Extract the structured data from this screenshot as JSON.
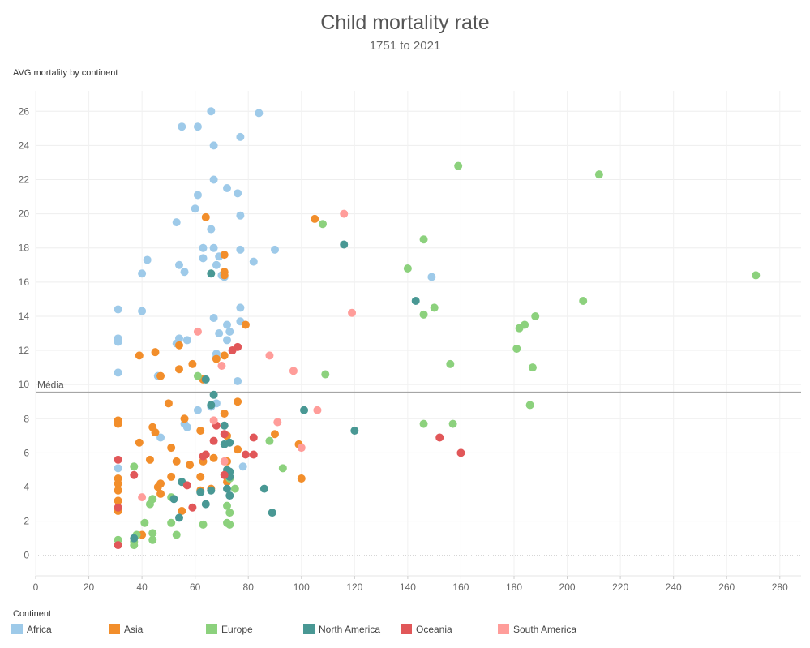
{
  "chart_data": {
    "type": "scatter",
    "title": "Child mortality rate",
    "subtitle": "1751 to 2021",
    "ylabel": "AVG mortality by continent",
    "xlabel": "",
    "xlim": [
      0,
      288
    ],
    "ylim": [
      -1.2,
      27.2
    ],
    "xticks": [
      0,
      20,
      40,
      60,
      80,
      100,
      120,
      140,
      160,
      180,
      200,
      220,
      240,
      260,
      280
    ],
    "yticks": [
      0,
      2,
      4,
      6,
      8,
      10,
      12,
      14,
      16,
      18,
      20,
      22,
      24,
      26
    ],
    "grid": true,
    "reference_line": {
      "label": "Média",
      "value": 9.55
    },
    "legend_title": "Continent",
    "legend_position": "bottom",
    "series": [
      {
        "name": "Africa",
        "color": "#9ecae9",
        "points": [
          [
            66,
            26
          ],
          [
            84,
            25.9
          ],
          [
            55,
            25.1
          ],
          [
            61,
            25.1
          ],
          [
            67,
            24
          ],
          [
            77,
            24.5
          ],
          [
            67,
            22
          ],
          [
            72,
            21.5
          ],
          [
            61,
            21.1
          ],
          [
            76,
            21.2
          ],
          [
            53,
            19.5
          ],
          [
            60,
            20.3
          ],
          [
            77,
            19.9
          ],
          [
            66,
            19.1
          ],
          [
            63,
            18
          ],
          [
            67,
            18
          ],
          [
            77,
            17.9
          ],
          [
            90,
            17.9
          ],
          [
            42,
            17.3
          ],
          [
            63,
            17.4
          ],
          [
            69,
            17.5
          ],
          [
            82,
            17.2
          ],
          [
            54,
            17
          ],
          [
            68,
            17
          ],
          [
            40,
            16.5
          ],
          [
            56,
            16.6
          ],
          [
            70,
            16.4
          ],
          [
            71,
            16.3
          ],
          [
            149,
            16.3
          ],
          [
            31,
            14.4
          ],
          [
            40,
            14.3
          ],
          [
            67,
            13.9
          ],
          [
            77,
            14.5
          ],
          [
            77,
            13.7
          ],
          [
            72,
            13.5
          ],
          [
            73,
            13.1
          ],
          [
            69,
            13
          ],
          [
            31,
            12.7
          ],
          [
            31,
            12.5
          ],
          [
            54,
            12.7
          ],
          [
            57,
            12.6
          ],
          [
            53,
            12.4
          ],
          [
            72,
            12.6
          ],
          [
            68,
            11.8
          ],
          [
            68,
            11.6
          ],
          [
            31,
            10.7
          ],
          [
            46,
            10.5
          ],
          [
            76,
            10.2
          ],
          [
            61,
            8.5
          ],
          [
            66,
            8.7
          ],
          [
            68,
            8.9
          ],
          [
            56,
            7.7
          ],
          [
            57,
            7.5
          ],
          [
            47,
            6.9
          ],
          [
            31,
            5.1
          ],
          [
            78,
            5.2
          ]
        ]
      },
      {
        "name": "Asia",
        "color": "#f28e2b",
        "points": [
          [
            64,
            19.8
          ],
          [
            105,
            19.7
          ],
          [
            71,
            17.6
          ],
          [
            71,
            16.6
          ],
          [
            71,
            16.4
          ],
          [
            79,
            13.5
          ],
          [
            54,
            12.3
          ],
          [
            39,
            11.7
          ],
          [
            45,
            11.9
          ],
          [
            59,
            11.2
          ],
          [
            68,
            11.5
          ],
          [
            71,
            11.7
          ],
          [
            47,
            10.5
          ],
          [
            54,
            10.9
          ],
          [
            63,
            10.3
          ],
          [
            76,
            9.0
          ],
          [
            50,
            8.9
          ],
          [
            56,
            8.0
          ],
          [
            71,
            8.3
          ],
          [
            31,
            7.9
          ],
          [
            31,
            7.7
          ],
          [
            44,
            7.5
          ],
          [
            45,
            7.2
          ],
          [
            62,
            7.3
          ],
          [
            72,
            7.0
          ],
          [
            90,
            7.1
          ],
          [
            99,
            6.5
          ],
          [
            39,
            6.6
          ],
          [
            51,
            6.3
          ],
          [
            76,
            6.2
          ],
          [
            43,
            5.6
          ],
          [
            53,
            5.5
          ],
          [
            58,
            5.3
          ],
          [
            63,
            5.5
          ],
          [
            67,
            5.7
          ],
          [
            72,
            5.5
          ],
          [
            31,
            4.5
          ],
          [
            31,
            4.2
          ],
          [
            46,
            4.0
          ],
          [
            47,
            4.2
          ],
          [
            51,
            4.6
          ],
          [
            62,
            4.6
          ],
          [
            72,
            4.3
          ],
          [
            100,
            4.5
          ],
          [
            31,
            3.8
          ],
          [
            47,
            3.6
          ],
          [
            62,
            3.8
          ],
          [
            66,
            3.9
          ],
          [
            31,
            3.2
          ],
          [
            31,
            2.6
          ],
          [
            55,
            2.6
          ],
          [
            40,
            1.2
          ]
        ]
      },
      {
        "name": "Europe",
        "color": "#8cd17d",
        "points": [
          [
            159,
            22.8
          ],
          [
            212,
            22.3
          ],
          [
            108,
            19.4
          ],
          [
            146,
            18.5
          ],
          [
            140,
            16.8
          ],
          [
            271,
            16.4
          ],
          [
            206,
            14.9
          ],
          [
            150,
            14.5
          ],
          [
            146,
            14.1
          ],
          [
            188,
            14.0
          ],
          [
            182,
            13.3
          ],
          [
            184,
            13.5
          ],
          [
            181,
            12.1
          ],
          [
            156,
            11.2
          ],
          [
            187,
            11.0
          ],
          [
            109,
            10.6
          ],
          [
            61,
            10.5
          ],
          [
            186,
            8.8
          ],
          [
            146,
            7.7
          ],
          [
            157,
            7.7
          ],
          [
            88,
            6.7
          ],
          [
            93,
            5.1
          ],
          [
            37,
            5.2
          ],
          [
            73,
            4.5
          ],
          [
            75,
            3.9
          ],
          [
            44,
            3.3
          ],
          [
            51,
            3.4
          ],
          [
            43,
            3.0
          ],
          [
            72,
            2.9
          ],
          [
            73,
            2.5
          ],
          [
            41,
            1.9
          ],
          [
            51,
            1.9
          ],
          [
            63,
            1.8
          ],
          [
            72,
            1.9
          ],
          [
            73,
            1.8
          ],
          [
            38,
            1.2
          ],
          [
            44,
            1.3
          ],
          [
            53,
            1.2
          ],
          [
            31,
            0.9
          ],
          [
            37,
            0.8
          ],
          [
            37,
            0.6
          ],
          [
            44,
            0.9
          ]
        ]
      },
      {
        "name": "North America",
        "color": "#499894",
        "points": [
          [
            116,
            18.2
          ],
          [
            66,
            16.5
          ],
          [
            143,
            14.9
          ],
          [
            64,
            10.3
          ],
          [
            67,
            9.4
          ],
          [
            66,
            8.8
          ],
          [
            101,
            8.5
          ],
          [
            71,
            7.6
          ],
          [
            120,
            7.3
          ],
          [
            73,
            6.6
          ],
          [
            71,
            6.5
          ],
          [
            72,
            5.0
          ],
          [
            73,
            4.9
          ],
          [
            73,
            4.6
          ],
          [
            55,
            4.3
          ],
          [
            72,
            3.9
          ],
          [
            86,
            3.9
          ],
          [
            66,
            3.8
          ],
          [
            62,
            3.7
          ],
          [
            73,
            3.5
          ],
          [
            52,
            3.3
          ],
          [
            64,
            3.0
          ],
          [
            89,
            2.5
          ],
          [
            54,
            2.2
          ],
          [
            37,
            1.0
          ]
        ]
      },
      {
        "name": "Oceania",
        "color": "#e15759",
        "points": [
          [
            76,
            12.2
          ],
          [
            74,
            12.0
          ],
          [
            68,
            7.6
          ],
          [
            71,
            7.1
          ],
          [
            82,
            6.9
          ],
          [
            152,
            6.9
          ],
          [
            67,
            6.7
          ],
          [
            63,
            5.8
          ],
          [
            64,
            5.9
          ],
          [
            79,
            5.9
          ],
          [
            82,
            5.9
          ],
          [
            160,
            6.0
          ],
          [
            31,
            5.6
          ],
          [
            71,
            4.7
          ],
          [
            37,
            4.7
          ],
          [
            57,
            4.1
          ],
          [
            59,
            2.8
          ],
          [
            31,
            2.8
          ],
          [
            31,
            0.6
          ]
        ]
      },
      {
        "name": "South America",
        "color": "#ff9d9a",
        "points": [
          [
            116,
            20.0
          ],
          [
            119,
            14.2
          ],
          [
            61,
            13.1
          ],
          [
            88,
            11.7
          ],
          [
            70,
            11.1
          ],
          [
            97,
            10.8
          ],
          [
            106,
            8.5
          ],
          [
            91,
            7.8
          ],
          [
            67,
            7.9
          ],
          [
            100,
            6.3
          ],
          [
            71,
            5.5
          ],
          [
            40,
            3.4
          ]
        ]
      }
    ]
  }
}
